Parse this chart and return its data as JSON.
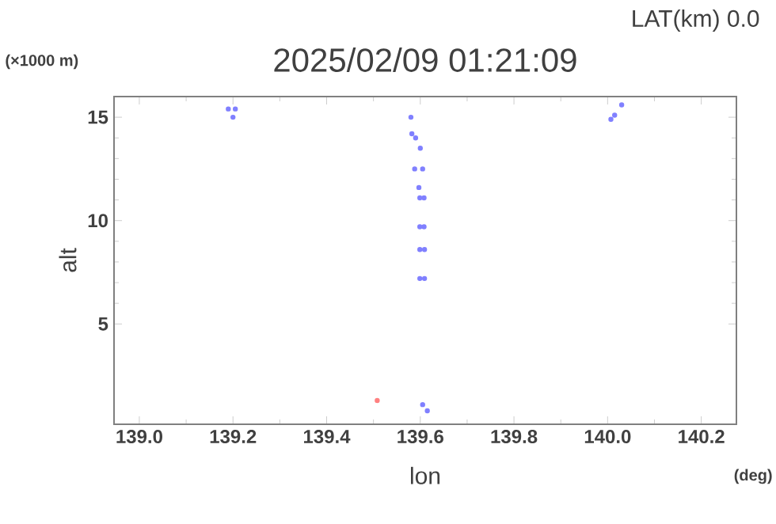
{
  "chart_data": {
    "type": "scatter",
    "title": "2025/02/09 01:21:09",
    "xlabel": "lon",
    "ylabel": "alt",
    "annotations": [
      "LAT(km) 0.0",
      "(×1000 m)",
      "(deg)"
    ],
    "xlim": [
      138.946,
      140.275
    ],
    "ylim": [
      0.15,
      16.0
    ],
    "xticks": [
      {
        "value": 139.0,
        "label": "139.0"
      },
      {
        "value": 139.2,
        "label": "139.2"
      },
      {
        "value": 139.4,
        "label": "139.4"
      },
      {
        "value": 139.6,
        "label": "139.6"
      },
      {
        "value": 139.8,
        "label": "139.8"
      },
      {
        "value": 140.0,
        "label": "140.0"
      },
      {
        "value": 140.2,
        "label": "140.2"
      }
    ],
    "yticks": [
      5,
      10,
      15
    ],
    "grid": false,
    "series": [
      {
        "color": "#8080ff",
        "x": [
          139.19,
          139.2,
          139.205
        ],
        "values": [
          15.4,
          15.0,
          15.4
        ]
      },
      {
        "color": "#8080ff",
        "x": [
          139.58,
          139.59,
          139.6,
          139.605,
          139.597,
          139.588,
          139.582
        ],
        "values": [
          15.0,
          14.0,
          13.5,
          12.5,
          11.6,
          12.5,
          14.2
        ]
      },
      {
        "color": "#8080ff",
        "x": [
          139.599,
          139.608,
          139.608,
          139.599
        ],
        "values": [
          11.1,
          11.1,
          9.7,
          9.7
        ]
      },
      {
        "color": "#8080ff",
        "x": [
          139.599,
          139.609,
          139.609,
          139.599
        ],
        "values": [
          8.6,
          8.6,
          7.2,
          7.2
        ]
      },
      {
        "color": "#8080ff",
        "x": [
          140.03,
          140.015,
          140.007
        ],
        "values": [
          15.6,
          15.1,
          14.9
        ]
      },
      {
        "color": "#ff8080",
        "x": [
          139.508
        ],
        "values": [
          1.3
        ]
      },
      {
        "color": "#8080ff",
        "x": [
          139.605,
          139.615
        ],
        "values": [
          1.1,
          0.8
        ]
      }
    ]
  }
}
